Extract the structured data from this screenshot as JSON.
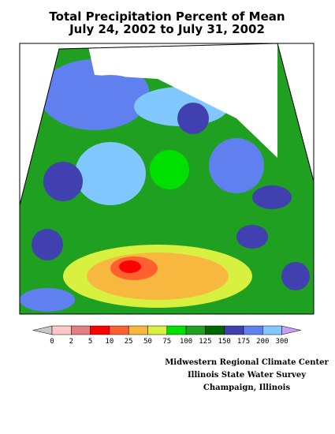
{
  "header": {
    "title": "Total Precipitation Percent of Mean",
    "subtitle": "July 24, 2002 to July 31, 2002"
  },
  "legend": {
    "labels": [
      0,
      2,
      5,
      10,
      25,
      50,
      75,
      100,
      125,
      150,
      175,
      200,
      300
    ],
    "colors": [
      "#ffc8c8",
      "#e08080",
      "#ff0000",
      "#ff6030",
      "#f8b840",
      "#d8f040",
      "#00e000",
      "#20a020",
      "#006800",
      "#4040b0",
      "#6080f0",
      "#80c8ff"
    ],
    "below_color": "#c8c8c8",
    "above_color": "#c8a0f0"
  },
  "credits": [
    "Midwestern Regional Climate Center",
    "Illinois State Water Survey",
    "Champaign, Illinois"
  ]
}
